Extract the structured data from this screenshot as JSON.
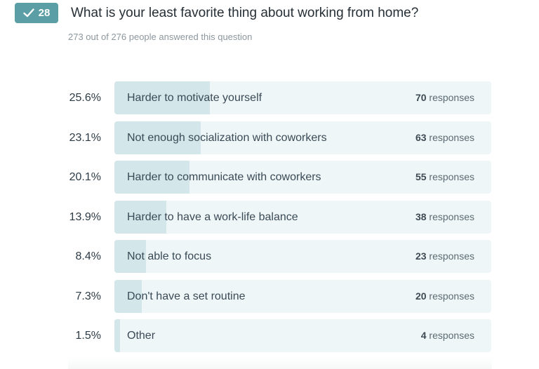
{
  "badge": {
    "icon": "check-icon",
    "count": "28",
    "color": "#5b9ea6"
  },
  "question": "What is your least favorite thing about working from home?",
  "answered_text": "273 out of 276 people answered this question",
  "responses_word": "responses",
  "options": [
    {
      "percent_label": "25.6%",
      "percent": 25.6,
      "label": "Harder to motivate yourself",
      "count": "70"
    },
    {
      "percent_label": "23.1%",
      "percent": 23.1,
      "label": "Not enough socialization with coworkers",
      "count": "63"
    },
    {
      "percent_label": "20.1%",
      "percent": 20.1,
      "label": "Harder to communicate with coworkers",
      "count": "55"
    },
    {
      "percent_label": "13.9%",
      "percent": 13.9,
      "label": "Harder to have a work-life balance",
      "count": "38"
    },
    {
      "percent_label": "8.4%",
      "percent": 8.4,
      "label": "Not able to focus",
      "count": "23"
    },
    {
      "percent_label": "7.3%",
      "percent": 7.3,
      "label": "Don't have a set routine",
      "count": "20"
    },
    {
      "percent_label": "1.5%",
      "percent": 1.5,
      "label": "Other",
      "count": "4"
    }
  ],
  "colors": {
    "bar_bg": "#eef6f7",
    "bar_fill": "#d3e6e9"
  }
}
